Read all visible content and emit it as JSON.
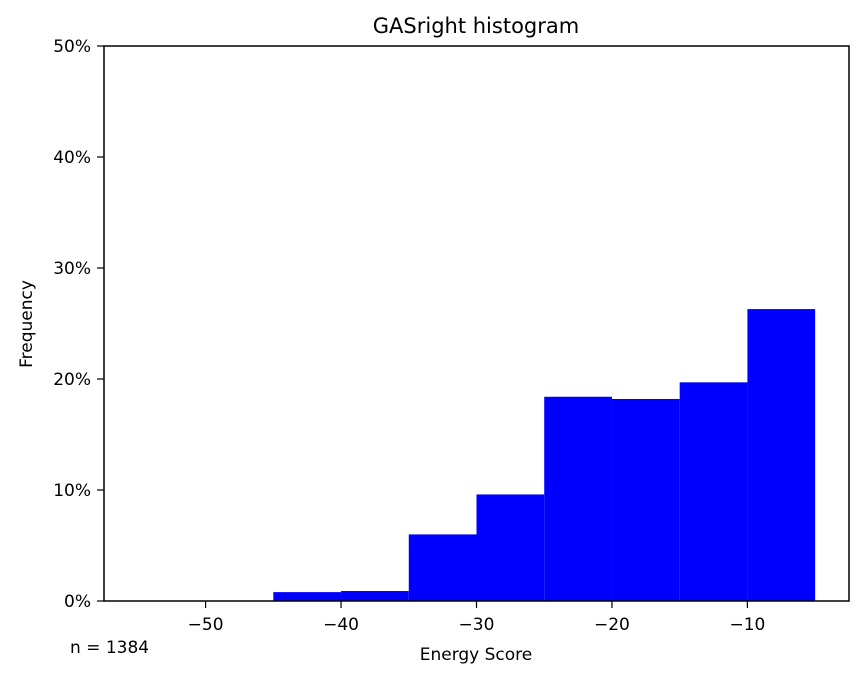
{
  "chart_data": {
    "type": "bar",
    "title": "GASright histogram",
    "xlabel": "Energy Score",
    "ylabel": "Frequency",
    "xlim": [
      -57.5,
      -2.5
    ],
    "ylim": [
      0,
      50
    ],
    "x_ticks": [
      {
        "value": -50,
        "label": "−50"
      },
      {
        "value": -40,
        "label": "−40"
      },
      {
        "value": -30,
        "label": "−30"
      },
      {
        "value": -20,
        "label": "−20"
      },
      {
        "value": -10,
        "label": "−10"
      }
    ],
    "y_ticks": [
      {
        "value": 0,
        "label": "0%"
      },
      {
        "value": 10,
        "label": "10%"
      },
      {
        "value": 20,
        "label": "20%"
      },
      {
        "value": 30,
        "label": "30%"
      },
      {
        "value": 40,
        "label": "40%"
      },
      {
        "value": 50,
        "label": "50%"
      }
    ],
    "bins": [
      {
        "start": -55,
        "end": -50,
        "value": 0.0
      },
      {
        "start": -50,
        "end": -45,
        "value": 0.0
      },
      {
        "start": -45,
        "end": -40,
        "value": 0.8
      },
      {
        "start": -40,
        "end": -35,
        "value": 0.9
      },
      {
        "start": -35,
        "end": -30,
        "value": 6.0
      },
      {
        "start": -30,
        "end": -25,
        "value": 9.6
      },
      {
        "start": -25,
        "end": -20,
        "value": 18.4
      },
      {
        "start": -20,
        "end": -15,
        "value": 18.2
      },
      {
        "start": -15,
        "end": -10,
        "value": 19.7
      },
      {
        "start": -10,
        "end": -5,
        "value": 26.3
      }
    ],
    "bar_color": "#0000ff",
    "grid": false,
    "legend": "none",
    "annotation": "n = 1384"
  }
}
